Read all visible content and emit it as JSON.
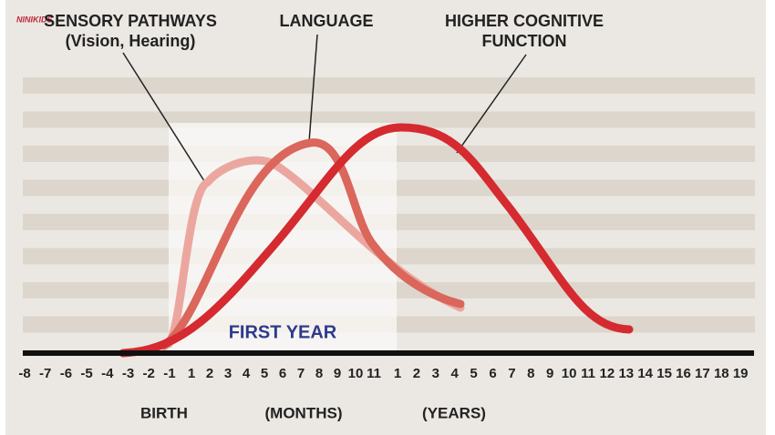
{
  "watermark": "NINIKIDS",
  "labels": {
    "sensory": [
      "SENSORY PATHWAYS",
      "(Vision, Hearing)"
    ],
    "language": [
      "LANGUAGE"
    ],
    "higher": [
      "HIGHER COGNITIVE",
      "FUNCTION"
    ]
  },
  "first_year": "FIRST YEAR",
  "ticks": {
    "prenatal": [
      "-8",
      "-7",
      "-6",
      "-5",
      "-4",
      "-3",
      "-2",
      "-1"
    ],
    "months": [
      "1",
      "2",
      "3",
      "4",
      "5",
      "6",
      "7",
      "8",
      "9",
      "10",
      "11"
    ],
    "years": [
      "1",
      "2",
      "3",
      "4",
      "5",
      "6",
      "7",
      "8",
      "9",
      "10",
      "11",
      "12",
      "13",
      "14",
      "15",
      "16",
      "17",
      "18",
      "19"
    ]
  },
  "axis_titles": {
    "birth": "BIRTH",
    "months": "(MONTHS)",
    "years": "(YEARS)"
  }
}
